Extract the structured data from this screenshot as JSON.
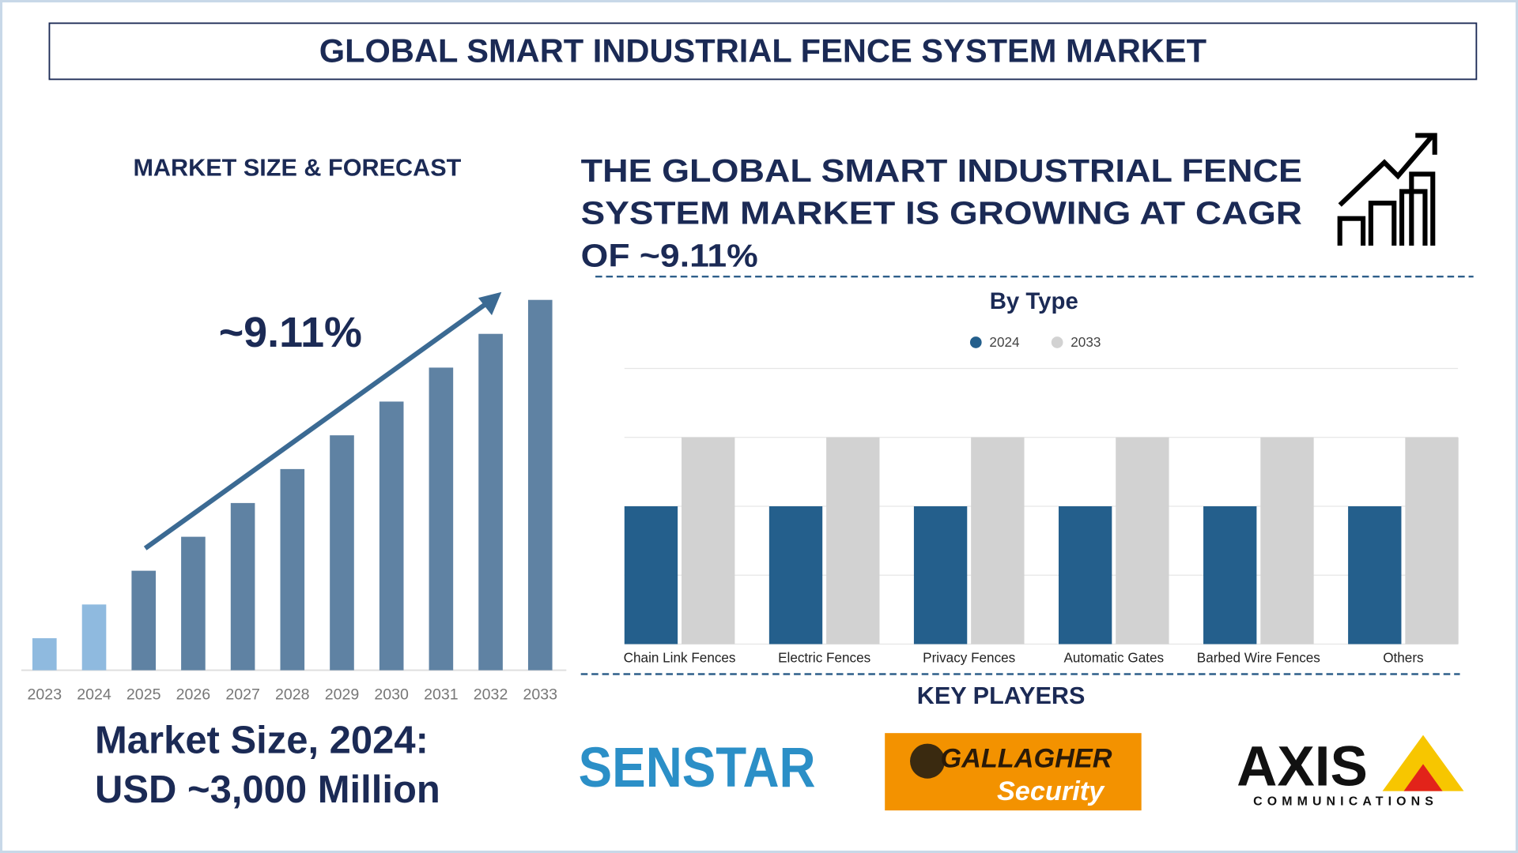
{
  "title": "GLOBAL SMART INDUSTRIAL FENCE SYSTEM MARKET",
  "headline": [
    "THE GLOBAL SMART INDUSTRIAL FENCE",
    "SYSTEM MARKET IS GROWING AT CAGR",
    "OF ~9.11%"
  ],
  "market_size": [
    "Market Size, 2024:",
    "USD ~3,000 Million"
  ],
  "key_players_title": "KEY PLAYERS",
  "key_players": [
    {
      "name": "SENSTAR"
    },
    {
      "name": "GALLAGHER",
      "tagline": "Security"
    },
    {
      "name": "AXIS",
      "tagline": "COMMUNICATIONS"
    }
  ],
  "chart_data": [
    {
      "type": "bar",
      "title": "MARKET SIZE & FORECAST",
      "annotation": "~9.11%",
      "categories": [
        "2023",
        "2024",
        "2025",
        "2026",
        "2027",
        "2028",
        "2029",
        "2030",
        "2031",
        "2032",
        "2033"
      ],
      "values": [
        1460,
        3000,
        4540,
        6090,
        7630,
        9180,
        10720,
        12260,
        13810,
        15350,
        16900
      ],
      "colors": [
        "#8fbadf",
        "#8fbadf",
        "#5f82a3",
        "#5f82a3",
        "#5f82a3",
        "#5f82a3",
        "#5f82a3",
        "#5f82a3",
        "#5f82a3",
        "#5f82a3",
        "#5f82a3"
      ],
      "ylim": [
        0,
        17500
      ]
    },
    {
      "type": "grouped-bar",
      "title": "By Type",
      "categories": [
        "Chain Link Fences",
        "Electric Fences",
        "Privacy Fences",
        "Automatic Gates",
        "Barbed Wire Fences",
        "Others"
      ],
      "series": [
        {
          "name": "2024",
          "color": "#245f8c",
          "values": [
            2,
            2,
            2,
            2,
            2,
            2
          ]
        },
        {
          "name": "2033",
          "color": "#d2d2d2",
          "values": [
            3,
            3,
            3,
            3,
            3,
            3
          ]
        }
      ],
      "ylim": [
        0,
        4
      ],
      "yticks": [
        0,
        1,
        2,
        3,
        4
      ],
      "grid": true
    }
  ]
}
